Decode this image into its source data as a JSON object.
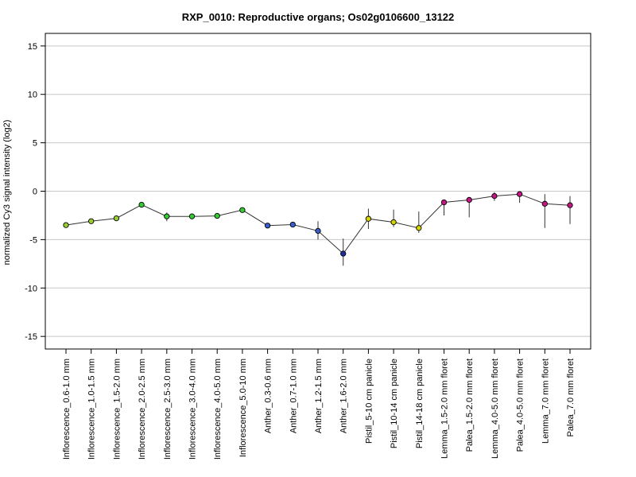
{
  "chart_data": {
    "type": "line",
    "title": "RXP_0010: Reproductive organs; Os02g0106600_13122",
    "xlabel": "",
    "ylabel": "normalized Cy3 signal intensity (log2)",
    "ylim": [
      -16.3,
      16.3
    ],
    "yticks": [
      15,
      10,
      5,
      0,
      -5,
      -10,
      -15
    ],
    "grid": true,
    "categories": [
      "Inflorescence_0.6-1.0 mm",
      "Inflorescence_1.0-1.5 mm",
      "Inflorescence_1.5-2.0 mm",
      "Inflorescence_2.0-2.5 mm",
      "Inflorescence_2.5-3.0 mm",
      "Inflorescence_3.0-4.0 mm",
      "Inflorescence_4.0-5.0 mm",
      "Inflorescence_5.0-10 mm",
      "Anther_0.3-0.6 mm",
      "Anther_0.7-1.0 mm",
      "Anther_1.2-1.5 mm",
      "Anther_1.6-2.0 mm",
      "Pistil_5-10 cm panicle",
      "Pistil_10-14 cm panicle",
      "Pistil_14-18 cm panicle",
      "Lemma_1.5-2.0 mm floret",
      "Palea_1.5-2.0 mm floret",
      "Lemma_4.0-5.0 mm floret",
      "Palea_4.0-5.0 mm floret",
      "Lemma_7.0 mm floret",
      "Palea_7.0 mm floret"
    ],
    "series": [
      {
        "values": [
          -3.5,
          -3.1,
          -2.8,
          -1.4,
          -2.6,
          -2.6,
          -2.55,
          -1.95,
          -3.55,
          -3.45,
          -4.1,
          -6.45,
          -2.85,
          -3.2,
          -3.8,
          -1.15,
          -0.9,
          -0.5,
          -0.3,
          -1.3,
          -1.45
        ],
        "error_low": [
          -3.7,
          -3.3,
          -3.0,
          -1.6,
          -3.1,
          -2.8,
          -2.75,
          -2.15,
          -3.75,
          -3.65,
          -5.0,
          -7.7,
          -3.9,
          -3.7,
          -4.3,
          -2.5,
          -2.7,
          -1.0,
          -1.2,
          -3.8,
          -3.4
        ],
        "error_high": [
          -3.3,
          -2.9,
          -2.6,
          -1.2,
          -2.2,
          -2.4,
          -2.35,
          -1.75,
          -3.35,
          -3.25,
          -3.1,
          -4.9,
          -1.8,
          -1.9,
          -2.1,
          -1.0,
          -0.7,
          -0.1,
          -0.1,
          -0.3,
          -0.5
        ],
        "point_colors": [
          "#9acd32",
          "#9acd32",
          "#9acd32",
          "#32cd32",
          "#32cd32",
          "#32cd32",
          "#32cd32",
          "#32cd32",
          "#3a5fcd",
          "#3a5fcd",
          "#3a5fcd",
          "#1c2fa0",
          "#d4d400",
          "#d4d400",
          "#d4d400",
          "#c71585",
          "#c71585",
          "#c71585",
          "#c71585",
          "#c71585",
          "#c71585"
        ]
      }
    ]
  }
}
